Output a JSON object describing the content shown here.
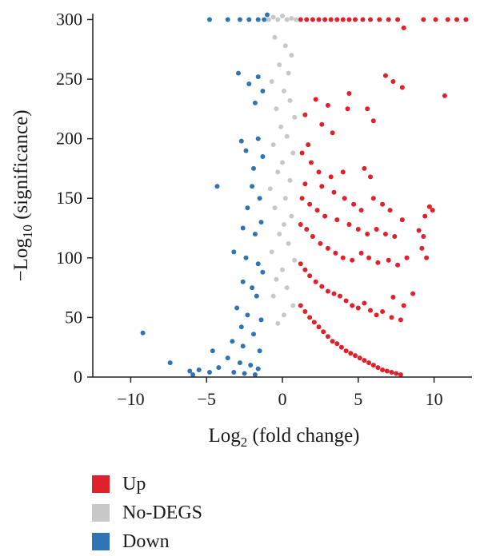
{
  "chart_data": {
    "type": "scatter",
    "xlabel": {
      "base": "Log",
      "sub": "2",
      "rest": " (fold change)"
    },
    "ylabel": {
      "prefix": "−Log",
      "sub": "10",
      "rest": " (significance)"
    },
    "xlim": [
      -12.5,
      12.5
    ],
    "ylim": [
      0,
      305
    ],
    "xticks": [
      {
        "value": -10,
        "label": "−10"
      },
      {
        "value": -5,
        "label": "−5"
      },
      {
        "value": 0,
        "label": "0"
      },
      {
        "value": 5,
        "label": "5"
      },
      {
        "value": 10,
        "label": "10"
      }
    ],
    "yticks": [
      {
        "value": 0,
        "label": "0"
      },
      {
        "value": 50,
        "label": "50"
      },
      {
        "value": 100,
        "label": "100"
      },
      {
        "value": 150,
        "label": "150"
      },
      {
        "value": 200,
        "label": "200"
      },
      {
        "value": 250,
        "label": "250"
      },
      {
        "value": 300,
        "label": "300"
      }
    ],
    "grid": false,
    "legend_position": "bottom-left",
    "series": [
      {
        "name": "Up",
        "color": "#e0202a",
        "points": [
          [
            1.2,
            300
          ],
          [
            1.6,
            300
          ],
          [
            2.0,
            300
          ],
          [
            2.4,
            300
          ],
          [
            2.8,
            300
          ],
          [
            3.2,
            300
          ],
          [
            3.6,
            300
          ],
          [
            4.0,
            300
          ],
          [
            4.4,
            300
          ],
          [
            4.8,
            300
          ],
          [
            5.3,
            300
          ],
          [
            5.8,
            300
          ],
          [
            6.4,
            300
          ],
          [
            7.0,
            300
          ],
          [
            7.6,
            300
          ],
          [
            9.3,
            300
          ],
          [
            10.1,
            300
          ],
          [
            10.9,
            300
          ],
          [
            11.5,
            300
          ],
          [
            12.1,
            300
          ],
          [
            8.0,
            293
          ],
          [
            6.8,
            253
          ],
          [
            7.3,
            248
          ],
          [
            7.9,
            243
          ],
          [
            4.4,
            238
          ],
          [
            10.7,
            236
          ],
          [
            2.2,
            233
          ],
          [
            3.0,
            228
          ],
          [
            4.3,
            225
          ],
          [
            5.6,
            225
          ],
          [
            1.5,
            220
          ],
          [
            2.6,
            212
          ],
          [
            3.3,
            205
          ],
          [
            6.0,
            215
          ],
          [
            1.7,
            195
          ],
          [
            1.3,
            188
          ],
          [
            1.9,
            180
          ],
          [
            2.4,
            172
          ],
          [
            3.2,
            168
          ],
          [
            4.0,
            172
          ],
          [
            5.4,
            175
          ],
          [
            5.8,
            168
          ],
          [
            1.5,
            162
          ],
          [
            2.6,
            160
          ],
          [
            3.4,
            155
          ],
          [
            4.1,
            150
          ],
          [
            4.7,
            145
          ],
          [
            5.2,
            140
          ],
          [
            6.0,
            150
          ],
          [
            6.6,
            145
          ],
          [
            7.1,
            140
          ],
          [
            7.9,
            132
          ],
          [
            9.7,
            143
          ],
          [
            9.9,
            140
          ],
          [
            9.4,
            135
          ],
          [
            9.0,
            123
          ],
          [
            9.3,
            118
          ],
          [
            1.3,
            150
          ],
          [
            1.8,
            145
          ],
          [
            2.3,
            140
          ],
          [
            2.8,
            135
          ],
          [
            3.6,
            132
          ],
          [
            4.4,
            128
          ],
          [
            5.0,
            124
          ],
          [
            5.6,
            120
          ],
          [
            6.2,
            124
          ],
          [
            6.8,
            120
          ],
          [
            7.4,
            118
          ],
          [
            1.2,
            128
          ],
          [
            1.6,
            124
          ],
          [
            2.0,
            118
          ],
          [
            2.5,
            112
          ],
          [
            3.0,
            108
          ],
          [
            3.5,
            104
          ],
          [
            4.0,
            100
          ],
          [
            4.6,
            98
          ],
          [
            5.2,
            104
          ],
          [
            5.7,
            100
          ],
          [
            6.3,
            96
          ],
          [
            7.0,
            98
          ],
          [
            7.6,
            94
          ],
          [
            8.2,
            100
          ],
          [
            9.2,
            108
          ],
          [
            9.5,
            100
          ],
          [
            1.2,
            95
          ],
          [
            1.5,
            90
          ],
          [
            1.8,
            85
          ],
          [
            2.2,
            80
          ],
          [
            2.6,
            76
          ],
          [
            3.0,
            72
          ],
          [
            3.4,
            70
          ],
          [
            3.8,
            68
          ],
          [
            4.2,
            64
          ],
          [
            4.6,
            60
          ],
          [
            5.0,
            58
          ],
          [
            5.4,
            62
          ],
          [
            5.8,
            56
          ],
          [
            6.2,
            52
          ],
          [
            6.6,
            55
          ],
          [
            7.2,
            50
          ],
          [
            7.8,
            48
          ],
          [
            8.6,
            70
          ],
          [
            7.3,
            67
          ],
          [
            8.0,
            60
          ],
          [
            1.2,
            60
          ],
          [
            1.5,
            55
          ],
          [
            1.8,
            50
          ],
          [
            2.1,
            46
          ],
          [
            2.4,
            42
          ],
          [
            2.7,
            38
          ],
          [
            3.0,
            34
          ],
          [
            3.3,
            30
          ],
          [
            3.6,
            28
          ],
          [
            3.9,
            25
          ],
          [
            4.2,
            22
          ],
          [
            4.5,
            20
          ],
          [
            4.8,
            18
          ],
          [
            5.1,
            16
          ],
          [
            5.4,
            14
          ],
          [
            5.7,
            12
          ],
          [
            6.0,
            10
          ],
          [
            6.3,
            8
          ],
          [
            6.6,
            6
          ],
          [
            6.9,
            5
          ],
          [
            7.2,
            4
          ],
          [
            7.5,
            3
          ],
          [
            7.8,
            2
          ]
        ]
      },
      {
        "name": "No-DEGS",
        "color": "#c8c8c8",
        "points": [
          [
            -0.9,
            300
          ],
          [
            -0.6,
            302
          ],
          [
            -0.3,
            300
          ],
          [
            0.0,
            303
          ],
          [
            0.3,
            300
          ],
          [
            0.6,
            301
          ],
          [
            0.9,
            300
          ],
          [
            -0.5,
            285
          ],
          [
            0.2,
            278
          ],
          [
            0.6,
            270
          ],
          [
            -0.2,
            262
          ],
          [
            0.4,
            255
          ],
          [
            -0.7,
            248
          ],
          [
            0.1,
            240
          ],
          [
            0.5,
            232
          ],
          [
            -0.4,
            225
          ],
          [
            0.8,
            218
          ],
          [
            -0.1,
            210
          ],
          [
            0.3,
            202
          ],
          [
            -0.6,
            195
          ],
          [
            0.7,
            188
          ],
          [
            0.0,
            180
          ],
          [
            -0.3,
            172
          ],
          [
            0.5,
            165
          ],
          [
            -0.8,
            158
          ],
          [
            0.2,
            150
          ],
          [
            -0.5,
            142
          ],
          [
            0.6,
            135
          ],
          [
            0.1,
            128
          ],
          [
            -0.2,
            120
          ],
          [
            0.4,
            112
          ],
          [
            -0.7,
            105
          ],
          [
            0.8,
            98
          ],
          [
            0.0,
            90
          ],
          [
            -0.4,
            82
          ],
          [
            0.3,
            75
          ],
          [
            -0.6,
            68
          ],
          [
            0.7,
            60
          ],
          [
            0.1,
            52
          ],
          [
            -0.3,
            45
          ]
        ]
      },
      {
        "name": "Down",
        "color": "#2f75b5",
        "points": [
          [
            -4.8,
            300
          ],
          [
            -3.6,
            300
          ],
          [
            -2.8,
            300
          ],
          [
            -2.2,
            300
          ],
          [
            -1.6,
            300
          ],
          [
            -1.2,
            300
          ],
          [
            -1.0,
            304
          ],
          [
            -2.9,
            255
          ],
          [
            -2.2,
            246
          ],
          [
            -1.6,
            252
          ],
          [
            -1.3,
            240
          ],
          [
            -1.8,
            230
          ],
          [
            -2.7,
            198
          ],
          [
            -2.4,
            190
          ],
          [
            -1.6,
            200
          ],
          [
            -1.3,
            185
          ],
          [
            -1.9,
            175
          ],
          [
            -4.3,
            160
          ],
          [
            -2.0,
            160
          ],
          [
            -1.5,
            150
          ],
          [
            -2.3,
            142
          ],
          [
            -1.4,
            130
          ],
          [
            -2.6,
            125
          ],
          [
            -1.8,
            120
          ],
          [
            -3.2,
            105
          ],
          [
            -2.4,
            100
          ],
          [
            -1.6,
            95
          ],
          [
            -1.3,
            88
          ],
          [
            -2.6,
            80
          ],
          [
            -2.0,
            75
          ],
          [
            -1.7,
            68
          ],
          [
            -3.0,
            58
          ],
          [
            -2.3,
            52
          ],
          [
            -1.4,
            48
          ],
          [
            -2.7,
            42
          ],
          [
            -1.9,
            36
          ],
          [
            -3.3,
            30
          ],
          [
            -2.6,
            26
          ],
          [
            -1.5,
            22
          ],
          [
            -4.6,
            22
          ],
          [
            -3.6,
            16
          ],
          [
            -2.8,
            12
          ],
          [
            -2.1,
            10
          ],
          [
            -1.6,
            7
          ],
          [
            -4.2,
            8
          ],
          [
            -5.5,
            6
          ],
          [
            -4.8,
            4
          ],
          [
            -6.1,
            5
          ],
          [
            -3.2,
            4
          ],
          [
            -2.5,
            3
          ],
          [
            -1.8,
            2
          ],
          [
            -9.2,
            37
          ],
          [
            -7.4,
            12
          ],
          [
            -5.9,
            2
          ]
        ]
      }
    ]
  }
}
